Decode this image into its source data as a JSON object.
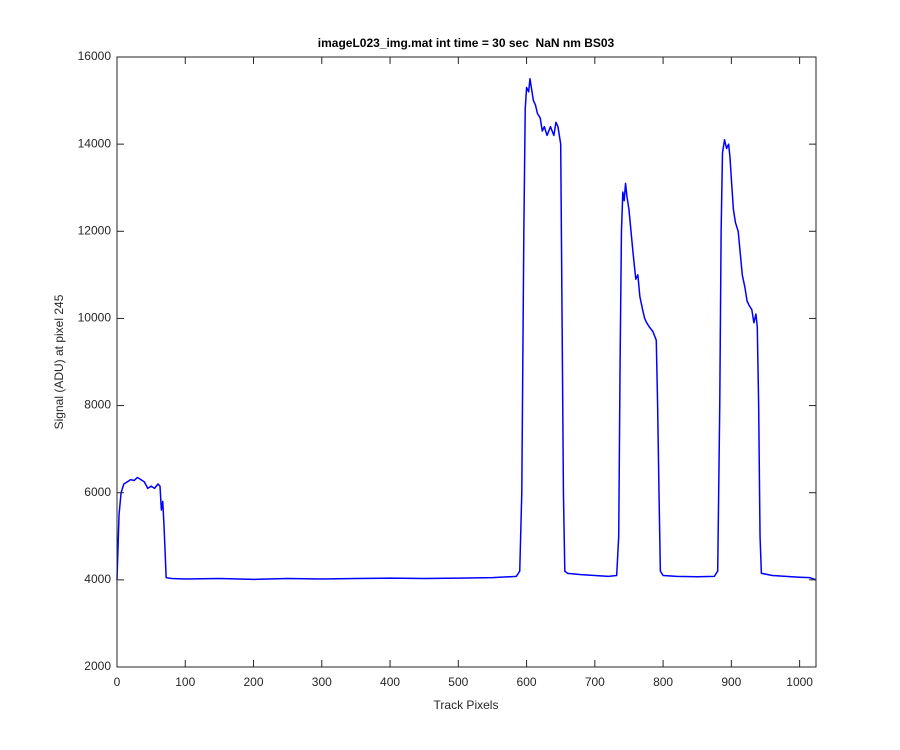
{
  "chart_data": {
    "type": "line",
    "title": "imageL023_img.mat int time = 30 sec  NaN nm BS03",
    "xlabel": "Track Pixels",
    "ylabel": "Signal (ADU) at pixel 245",
    "x": [
      0,
      3,
      6,
      10,
      15,
      20,
      25,
      30,
      35,
      40,
      45,
      50,
      55,
      60,
      63,
      65,
      67,
      69,
      72,
      80,
      100,
      150,
      200,
      250,
      300,
      350,
      400,
      450,
      500,
      550,
      585,
      590,
      593,
      596,
      598,
      600,
      603,
      605,
      608,
      610,
      613,
      616,
      620,
      623,
      626,
      630,
      635,
      640,
      643,
      646,
      650,
      652,
      654,
      656,
      660,
      680,
      700,
      720,
      732,
      735,
      737,
      739,
      741,
      743,
      745,
      747,
      750,
      753,
      756,
      758,
      760,
      763,
      766,
      770,
      773,
      776,
      780,
      785,
      790,
      792,
      794,
      796,
      800,
      820,
      850,
      875,
      880,
      883,
      885,
      887,
      890,
      893,
      896,
      898,
      900,
      903,
      906,
      910,
      913,
      916,
      920,
      923,
      926,
      930,
      933,
      936,
      938,
      940,
      942,
      944,
      960,
      980,
      1000,
      1015,
      1024
    ],
    "series": [
      {
        "name": "signal",
        "color": "#0000ff",
        "values": [
          4000,
          5500,
          6000,
          6200,
          6250,
          6300,
          6280,
          6350,
          6300,
          6250,
          6100,
          6150,
          6100,
          6200,
          6150,
          5600,
          5800,
          5200,
          4050,
          4030,
          4020,
          4030,
          4010,
          4030,
          4020,
          4030,
          4040,
          4030,
          4040,
          4050,
          4080,
          4200,
          6000,
          12000,
          14800,
          15300,
          15200,
          15500,
          15200,
          15000,
          14900,
          14700,
          14600,
          14300,
          14400,
          14200,
          14400,
          14200,
          14500,
          14400,
          14000,
          10000,
          6000,
          4200,
          4150,
          4120,
          4100,
          4080,
          4100,
          5000,
          9000,
          12000,
          12900,
          12700,
          13100,
          12800,
          12500,
          12000,
          11500,
          11200,
          10900,
          11000,
          10500,
          10200,
          10000,
          9900,
          9800,
          9700,
          9500,
          8000,
          6000,
          4200,
          4100,
          4080,
          4070,
          4080,
          4200,
          8000,
          12000,
          13800,
          14100,
          13900,
          14000,
          13700,
          13200,
          12500,
          12200,
          12000,
          11500,
          11000,
          10700,
          10400,
          10300,
          10200,
          9900,
          10100,
          9800,
          8000,
          5000,
          4150,
          4100,
          4080,
          4060,
          4050,
          4000
        ]
      }
    ],
    "xlim": [
      0,
      1024
    ],
    "ylim": [
      2000,
      16000
    ],
    "xticks": [
      0,
      100,
      200,
      300,
      400,
      500,
      600,
      700,
      800,
      900,
      1000
    ],
    "yticks": [
      2000,
      4000,
      6000,
      8000,
      10000,
      12000,
      14000,
      16000
    ]
  }
}
